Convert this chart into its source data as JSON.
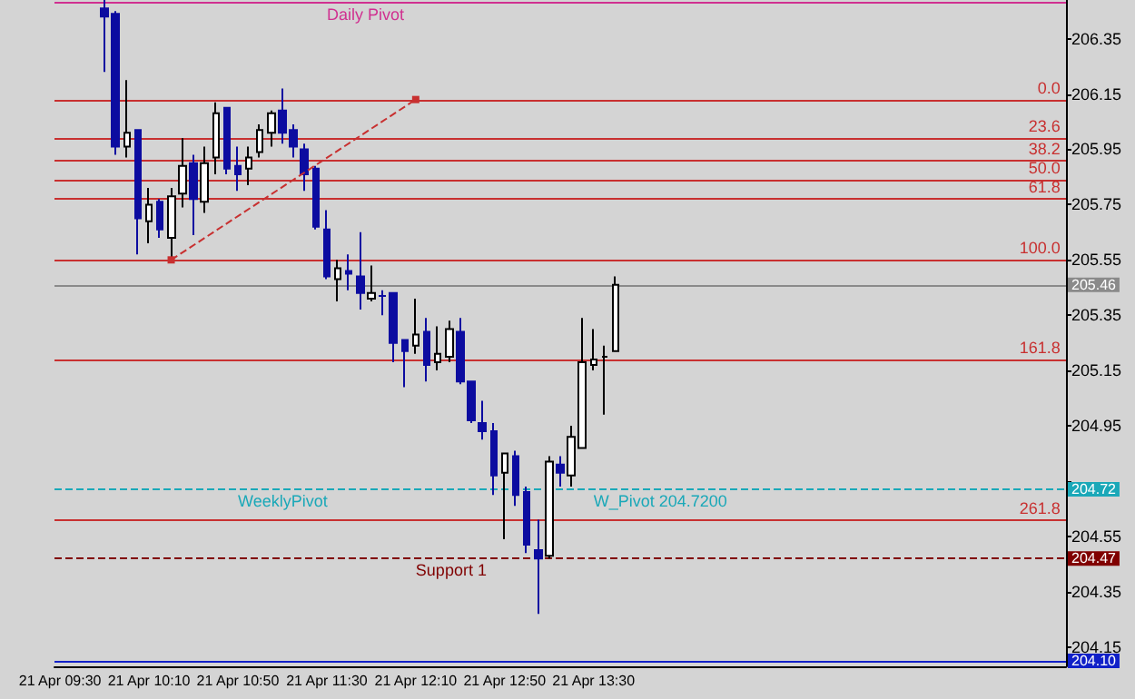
{
  "chart_data": {
    "type": "candlestick",
    "categories": [
      "21 Apr 09:30",
      null,
      null,
      null,
      null,
      null,
      null,
      null,
      "21 Apr 10:10",
      null,
      null,
      null,
      null,
      null,
      null,
      null,
      "21 Apr 10:50",
      null,
      null,
      null,
      null,
      null,
      null,
      null,
      "21 Apr 11:30",
      null,
      null,
      null,
      null,
      null,
      null,
      null,
      "21 Apr 12:10",
      null,
      null,
      null,
      null,
      null,
      null,
      null,
      "21 Apr 12:50",
      null,
      null,
      null,
      null,
      null,
      null,
      null,
      "21 Apr 13:30",
      null,
      null,
      null,
      null,
      null,
      null,
      null,
      null,
      null,
      null,
      null,
      null,
      null,
      null,
      null,
      null,
      null,
      null,
      null,
      null,
      null,
      null,
      null,
      null,
      null,
      null,
      null,
      null,
      null,
      null,
      null,
      null,
      null,
      null,
      null,
      null,
      null,
      null,
      null,
      null,
      null,
      null
    ],
    "ohlc": [
      null,
      null,
      null,
      null,
      [
        206.46,
        206.49,
        206.23,
        206.43
      ],
      [
        206.44,
        206.45,
        205.93,
        205.96
      ],
      [
        205.96,
        206.2,
        205.92,
        206.01
      ],
      [
        206.02,
        206.02,
        205.57,
        205.7
      ],
      [
        205.69,
        205.81,
        205.61,
        205.75
      ],
      [
        205.76,
        205.77,
        205.63,
        205.66
      ],
      [
        205.63,
        205.81,
        205.55,
        205.78
      ],
      [
        205.79,
        205.99,
        205.74,
        205.89
      ],
      [
        205.9,
        205.93,
        205.64,
        205.77
      ],
      [
        205.76,
        205.96,
        205.72,
        205.9
      ],
      [
        205.92,
        206.12,
        205.86,
        206.08
      ],
      [
        206.1,
        206.1,
        205.86,
        205.88
      ],
      [
        205.89,
        205.96,
        205.8,
        205.86
      ],
      [
        205.88,
        205.96,
        205.82,
        205.92
      ],
      [
        205.94,
        206.04,
        205.92,
        206.02
      ],
      [
        206.01,
        206.09,
        205.96,
        206.08
      ],
      [
        206.09,
        206.17,
        205.97,
        206.01
      ],
      [
        206.02,
        206.04,
        205.92,
        205.96
      ],
      [
        205.95,
        205.97,
        205.8,
        205.86
      ],
      [
        205.88,
        205.89,
        205.66,
        205.67
      ],
      [
        205.66,
        205.73,
        205.48,
        205.49
      ],
      [
        205.48,
        205.55,
        205.4,
        205.52
      ],
      [
        205.51,
        205.57,
        205.44,
        205.5
      ],
      [
        205.49,
        205.65,
        205.37,
        205.43
      ],
      [
        205.41,
        205.53,
        205.4,
        205.43
      ],
      [
        205.42,
        205.44,
        205.35,
        205.42
      ],
      [
        205.43,
        205.43,
        205.18,
        205.25
      ],
      [
        205.26,
        205.26,
        205.09,
        205.22
      ],
      [
        205.24,
        205.41,
        205.21,
        205.28
      ],
      [
        205.29,
        205.34,
        205.11,
        205.17
      ],
      [
        205.18,
        205.31,
        205.15,
        205.21
      ],
      [
        205.2,
        205.33,
        205.18,
        205.3
      ],
      [
        205.29,
        205.34,
        205.1,
        205.11
      ],
      [
        205.11,
        205.11,
        204.96,
        204.97
      ],
      [
        204.96,
        205.04,
        204.9,
        204.93
      ],
      [
        204.93,
        204.96,
        204.7,
        204.77
      ],
      [
        204.78,
        204.85,
        204.54,
        204.85
      ],
      [
        204.84,
        204.86,
        204.66,
        204.7
      ],
      [
        204.71,
        204.73,
        204.49,
        204.52
      ],
      [
        204.5,
        204.61,
        204.27,
        204.47
      ],
      [
        204.48,
        204.84,
        204.47,
        204.82
      ],
      [
        204.81,
        204.84,
        204.73,
        204.78
      ],
      [
        204.77,
        204.95,
        204.73,
        204.91
      ],
      [
        204.87,
        205.34,
        204.87,
        205.18
      ],
      [
        205.17,
        205.3,
        205.15,
        205.19
      ],
      [
        205.2,
        205.24,
        204.99,
        205.2
      ],
      [
        205.22,
        205.49,
        205.22,
        205.46
      ],
      null,
      null,
      null,
      null,
      null,
      null,
      null,
      null,
      null,
      null,
      null,
      null,
      null,
      null,
      null,
      null,
      null,
      null,
      null,
      null,
      null,
      null,
      null,
      null,
      null,
      null,
      null,
      null,
      null,
      null,
      null,
      null,
      null,
      null,
      null,
      null,
      null,
      null,
      null,
      null
    ],
    "series": [
      {
        "type": "line",
        "color": "#c83030",
        "line_style": "dashed",
        "marker": "square",
        "values": [
          null,
          null,
          null,
          null,
          null,
          null,
          null,
          null,
          null,
          null,
          205.55,
          null,
          null,
          null,
          null,
          null,
          null,
          null,
          null,
          null,
          null,
          null,
          null,
          null,
          null,
          null,
          null,
          null,
          null,
          null,
          null,
          null,
          206.13,
          null,
          null,
          null,
          null,
          null,
          null,
          null,
          null,
          null,
          null,
          null,
          null,
          null,
          null,
          null,
          null,
          null,
          null,
          null,
          null,
          null,
          null,
          null,
          null,
          null,
          null,
          null,
          null,
          null,
          null,
          null,
          null,
          null,
          null,
          null,
          null,
          null,
          null,
          null,
          null,
          null,
          null,
          null,
          null,
          null,
          null,
          null,
          null,
          null,
          null,
          null,
          null,
          null,
          null,
          null,
          null,
          null,
          null
        ]
      }
    ],
    "ylim": [
      204.08,
      206.49
    ],
    "yticks": [
      204.15,
      204.35,
      204.55,
      {
        "value": 204.75,
        "label": null
      },
      204.95,
      205.15,
      205.35,
      205.55,
      205.75,
      205.95,
      206.15,
      206.35
    ],
    "ref_lines": [
      {
        "axis": "y",
        "value": 206.48,
        "color": "#d03090"
      },
      {
        "axis": "y",
        "value": 206.13,
        "color": "#c83030"
      },
      {
        "axis": "y",
        "value": 205.99,
        "color": "#c83030"
      },
      {
        "axis": "y",
        "value": 205.91,
        "color": "#c83030"
      },
      {
        "axis": "y",
        "value": 205.84,
        "color": "#c83030"
      },
      {
        "axis": "y",
        "value": 205.77,
        "color": "#c83030"
      },
      {
        "axis": "y",
        "value": 205.55,
        "color": "#c83030"
      },
      {
        "axis": "y",
        "value": 205.19,
        "color": "#c83030"
      },
      {
        "axis": "y",
        "value": 204.61,
        "color": "#c83030"
      },
      {
        "axis": "y",
        "value": 205.46,
        "label": "205.46",
        "color": "#8a8a8a"
      },
      {
        "axis": "y",
        "value": 204.72,
        "label": "204.72",
        "color": "#1aa8b8",
        "line_style": "dashed"
      },
      {
        "axis": "y",
        "value": 204.47,
        "label": "204.47",
        "color": "#800000",
        "line_style": "dashed"
      },
      {
        "axis": "y",
        "value": 204.1,
        "label": "204.10",
        "color": "#1020c8"
      }
    ],
    "annotations": [
      {
        "text": "Daily Pivot",
        "x": "21 Apr 11:30",
        "y": 206.48
      },
      {
        "text": "0.0",
        "y": 206.13
      },
      {
        "text": "23.6",
        "y": 205.99
      },
      {
        "text": "38.2",
        "y": 205.91
      },
      {
        "text": "50.0",
        "y": 205.84
      },
      {
        "text": "61.8",
        "y": 205.77
      },
      {
        "text": "100.0",
        "y": 205.55
      },
      {
        "text": "161.8",
        "y": 205.19
      },
      {
        "text": "261.8",
        "y": 204.61
      },
      {
        "text": "WeeklyPivot",
        "x": "21 Apr 10:50",
        "y": 204.72
      },
      {
        "text": "W_Pivot 204.7200",
        "x": "21 Apr 13:30",
        "y": 204.72
      },
      {
        "text": "Support 1",
        "x": "21 Apr 12:10",
        "y": 204.47
      }
    ]
  }
}
